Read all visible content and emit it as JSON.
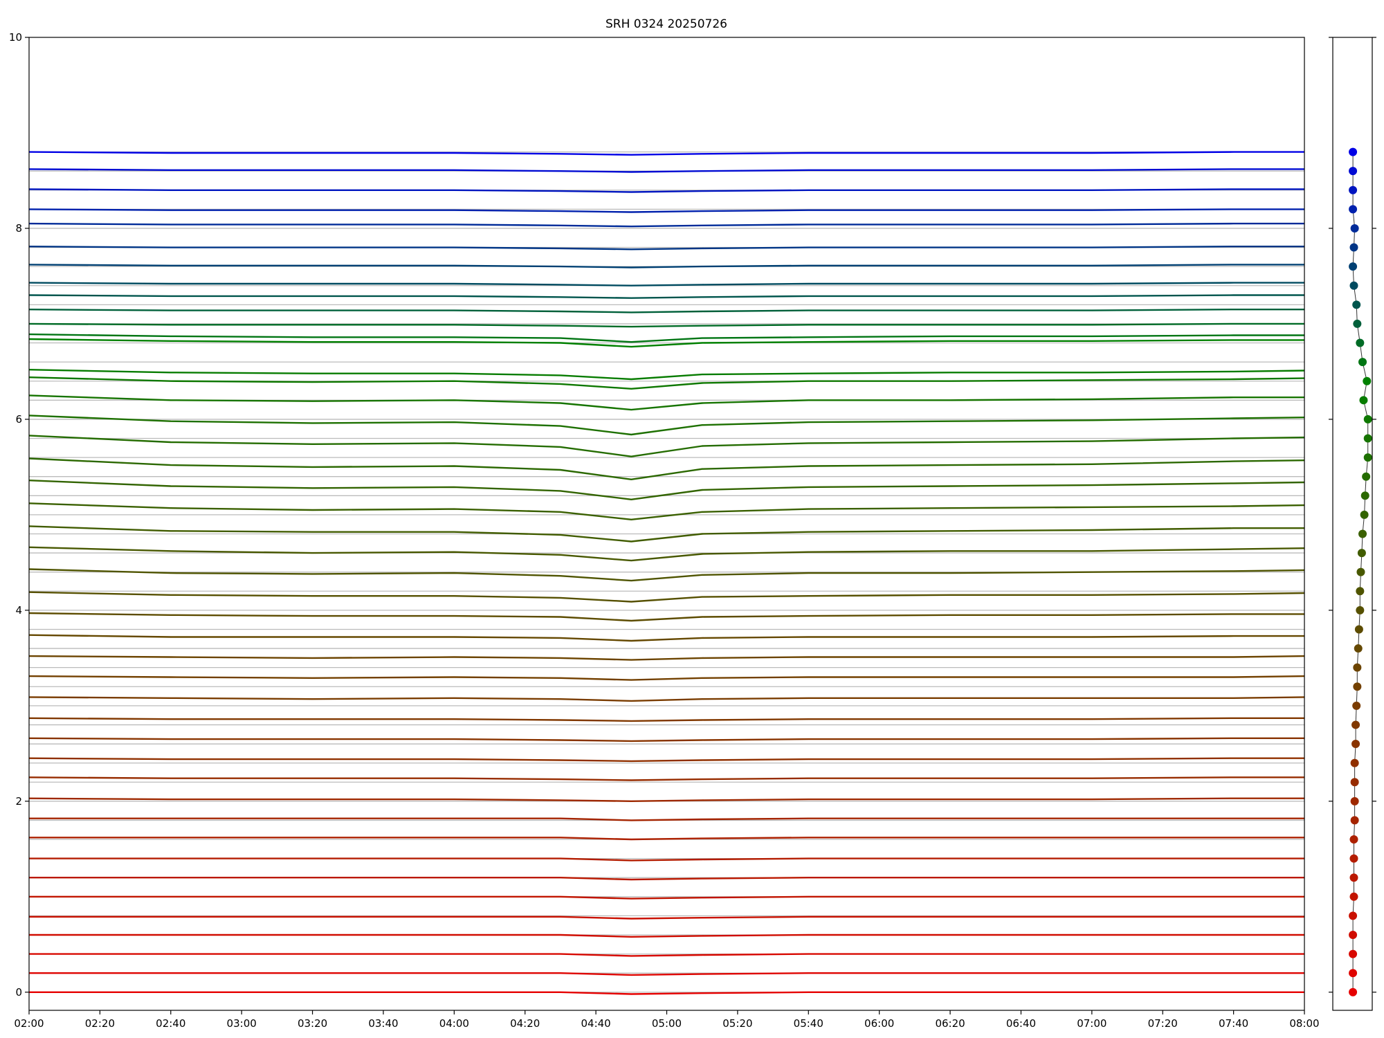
{
  "chart_data": [
    {
      "type": "line",
      "title": "SRH 0324 20250726",
      "x": [
        "02:00",
        "02:40",
        "03:20",
        "04:00",
        "04:30",
        "04:50",
        "05:10",
        "05:40",
        "06:20",
        "07:00",
        "07:40",
        "08:00"
      ],
      "xlim": [
        "02:00",
        "08:00"
      ],
      "xticks": [
        "02:00",
        "02:20",
        "02:40",
        "03:00",
        "03:20",
        "03:40",
        "04:00",
        "04:20",
        "04:40",
        "05:00",
        "05:20",
        "05:40",
        "06:00",
        "06:20",
        "06:40",
        "07:00",
        "07:20",
        "07:40",
        "08:00"
      ],
      "ylim": [
        -0.19,
        10
      ],
      "yticks": [
        0,
        2,
        4,
        6,
        8,
        10
      ],
      "series": [
        {
          "color": "#e60000",
          "values": [
            0,
            0,
            0,
            0,
            0,
            -0.02,
            -0.01,
            0,
            0,
            0,
            0,
            0
          ]
        },
        {
          "color": "#df0400",
          "values": [
            0.2,
            0.2,
            0.2,
            0.2,
            0.2,
            0.18,
            0.19,
            0.2,
            0.2,
            0.2,
            0.2,
            0.2
          ]
        },
        {
          "color": "#d80800",
          "values": [
            0.4,
            0.4,
            0.4,
            0.4,
            0.4,
            0.38,
            0.39,
            0.4,
            0.4,
            0.4,
            0.4,
            0.4
          ]
        },
        {
          "color": "#d00c00",
          "values": [
            0.6,
            0.6,
            0.6,
            0.6,
            0.6,
            0.58,
            0.59,
            0.6,
            0.6,
            0.6,
            0.6,
            0.6
          ]
        },
        {
          "color": "#c91000",
          "values": [
            0.79,
            0.79,
            0.79,
            0.79,
            0.79,
            0.77,
            0.78,
            0.79,
            0.79,
            0.79,
            0.79,
            0.79
          ]
        },
        {
          "color": "#c21400",
          "values": [
            1.0,
            1.0,
            1.0,
            1.0,
            1.0,
            0.98,
            0.99,
            1.0,
            1.0,
            1.0,
            1.0,
            1.0
          ]
        },
        {
          "color": "#bb1800",
          "values": [
            1.2,
            1.2,
            1.2,
            1.2,
            1.2,
            1.18,
            1.19,
            1.2,
            1.2,
            1.2,
            1.2,
            1.2
          ]
        },
        {
          "color": "#b41c00",
          "values": [
            1.4,
            1.4,
            1.4,
            1.4,
            1.4,
            1.38,
            1.39,
            1.4,
            1.4,
            1.4,
            1.4,
            1.4
          ]
        },
        {
          "color": "#ad2000",
          "values": [
            1.62,
            1.62,
            1.62,
            1.62,
            1.62,
            1.6,
            1.61,
            1.62,
            1.62,
            1.62,
            1.62,
            1.62
          ]
        },
        {
          "color": "#a52400",
          "values": [
            1.82,
            1.82,
            1.82,
            1.82,
            1.82,
            1.8,
            1.81,
            1.82,
            1.82,
            1.82,
            1.82,
            1.82
          ]
        },
        {
          "color": "#9e2800",
          "values": [
            2.03,
            2.02,
            2.02,
            2.02,
            2.01,
            2.0,
            2.01,
            2.02,
            2.02,
            2.02,
            2.03,
            2.03
          ]
        },
        {
          "color": "#972c00",
          "values": [
            2.25,
            2.24,
            2.24,
            2.24,
            2.23,
            2.22,
            2.23,
            2.24,
            2.24,
            2.24,
            2.25,
            2.25
          ]
        },
        {
          "color": "#903000",
          "values": [
            2.45,
            2.44,
            2.44,
            2.44,
            2.43,
            2.42,
            2.43,
            2.44,
            2.44,
            2.44,
            2.45,
            2.45
          ]
        },
        {
          "color": "#893400",
          "values": [
            2.66,
            2.65,
            2.65,
            2.65,
            2.64,
            2.63,
            2.64,
            2.65,
            2.65,
            2.65,
            2.66,
            2.66
          ]
        },
        {
          "color": "#813800",
          "values": [
            2.87,
            2.86,
            2.86,
            2.86,
            2.85,
            2.84,
            2.85,
            2.86,
            2.86,
            2.86,
            2.87,
            2.87
          ]
        },
        {
          "color": "#7a3c00",
          "values": [
            3.09,
            3.08,
            3.07,
            3.08,
            3.07,
            3.05,
            3.07,
            3.08,
            3.08,
            3.08,
            3.08,
            3.09
          ]
        },
        {
          "color": "#734000",
          "values": [
            3.31,
            3.3,
            3.29,
            3.3,
            3.29,
            3.27,
            3.29,
            3.3,
            3.3,
            3.3,
            3.3,
            3.31
          ]
        },
        {
          "color": "#6c4400",
          "values": [
            3.52,
            3.51,
            3.5,
            3.51,
            3.5,
            3.48,
            3.5,
            3.51,
            3.51,
            3.51,
            3.51,
            3.52
          ]
        },
        {
          "color": "#654800",
          "values": [
            3.74,
            3.72,
            3.72,
            3.72,
            3.71,
            3.68,
            3.71,
            3.72,
            3.72,
            3.72,
            3.73,
            3.73
          ]
        },
        {
          "color": "#5d4c00",
          "values": [
            3.97,
            3.95,
            3.94,
            3.94,
            3.93,
            3.89,
            3.93,
            3.94,
            3.95,
            3.95,
            3.96,
            3.96
          ]
        },
        {
          "color": "#565000",
          "values": [
            4.19,
            4.16,
            4.15,
            4.15,
            4.13,
            4.09,
            4.14,
            4.15,
            4.16,
            4.16,
            4.17,
            4.18
          ]
        },
        {
          "color": "#4f5400",
          "values": [
            4.43,
            4.39,
            4.38,
            4.39,
            4.36,
            4.31,
            4.37,
            4.39,
            4.39,
            4.4,
            4.41,
            4.42
          ]
        },
        {
          "color": "#485800",
          "values": [
            4.66,
            4.62,
            4.6,
            4.61,
            4.58,
            4.52,
            4.59,
            4.61,
            4.62,
            4.62,
            4.64,
            4.65
          ]
        },
        {
          "color": "#415c00",
          "values": [
            4.88,
            4.83,
            4.82,
            4.82,
            4.79,
            4.72,
            4.8,
            4.82,
            4.83,
            4.84,
            4.86,
            4.86
          ]
        },
        {
          "color": "#3a6000",
          "values": [
            5.12,
            5.07,
            5.05,
            5.06,
            5.03,
            4.95,
            5.03,
            5.06,
            5.07,
            5.08,
            5.09,
            5.1
          ]
        },
        {
          "color": "#326400",
          "values": [
            5.36,
            5.3,
            5.28,
            5.29,
            5.25,
            5.16,
            5.26,
            5.29,
            5.3,
            5.31,
            5.33,
            5.34
          ]
        },
        {
          "color": "#2b6800",
          "values": [
            5.59,
            5.52,
            5.5,
            5.51,
            5.47,
            5.37,
            5.48,
            5.51,
            5.52,
            5.53,
            5.56,
            5.57
          ]
        },
        {
          "color": "#246c00",
          "values": [
            5.83,
            5.76,
            5.74,
            5.75,
            5.71,
            5.61,
            5.72,
            5.75,
            5.76,
            5.77,
            5.8,
            5.81
          ]
        },
        {
          "color": "#1d7000",
          "values": [
            6.04,
            5.98,
            5.96,
            5.97,
            5.93,
            5.84,
            5.94,
            5.97,
            5.98,
            5.99,
            6.01,
            6.02
          ]
        },
        {
          "color": "#167400",
          "values": [
            6.25,
            6.2,
            6.19,
            6.2,
            6.17,
            6.1,
            6.17,
            6.2,
            6.2,
            6.21,
            6.23,
            6.23
          ]
        },
        {
          "color": "#0e7800",
          "values": [
            6.44,
            6.4,
            6.39,
            6.4,
            6.37,
            6.32,
            6.38,
            6.4,
            6.4,
            6.41,
            6.42,
            6.43
          ]
        },
        {
          "color": "#077c00",
          "values": [
            6.52,
            6.49,
            6.48,
            6.48,
            6.46,
            6.42,
            6.47,
            6.48,
            6.49,
            6.49,
            6.5,
            6.51
          ]
        },
        {
          "color": "#008000",
          "values": [
            6.84,
            6.82,
            6.81,
            6.81,
            6.8,
            6.76,
            6.8,
            6.81,
            6.82,
            6.82,
            6.83,
            6.83
          ]
        },
        {
          "color": "#007513",
          "values": [
            6.89,
            6.87,
            6.86,
            6.86,
            6.85,
            6.81,
            6.85,
            6.86,
            6.87,
            6.87,
            6.88,
            6.88
          ]
        },
        {
          "color": "#006b26",
          "values": [
            7.0,
            6.99,
            6.99,
            6.99,
            6.98,
            6.97,
            6.98,
            6.99,
            6.99,
            6.99,
            7.0,
            7.0
          ]
        },
        {
          "color": "#00603a",
          "values": [
            7.15,
            7.14,
            7.14,
            7.14,
            7.13,
            7.12,
            7.13,
            7.14,
            7.14,
            7.14,
            7.15,
            7.15
          ]
        },
        {
          "color": "#00554d",
          "values": [
            7.3,
            7.29,
            7.29,
            7.29,
            7.28,
            7.27,
            7.28,
            7.29,
            7.29,
            7.29,
            7.3,
            7.3
          ]
        },
        {
          "color": "#004b60",
          "values": [
            7.43,
            7.42,
            7.42,
            7.42,
            7.41,
            7.4,
            7.41,
            7.42,
            7.42,
            7.42,
            7.43,
            7.43
          ]
        },
        {
          "color": "#004073",
          "values": [
            7.62,
            7.61,
            7.61,
            7.61,
            7.6,
            7.59,
            7.6,
            7.61,
            7.61,
            7.61,
            7.62,
            7.62
          ]
        },
        {
          "color": "#003586",
          "values": [
            7.81,
            7.8,
            7.8,
            7.8,
            7.79,
            7.78,
            7.79,
            7.8,
            7.8,
            7.8,
            7.81,
            7.81
          ]
        },
        {
          "color": "#002b99",
          "values": [
            8.05,
            8.04,
            8.04,
            8.04,
            8.03,
            8.02,
            8.03,
            8.04,
            8.04,
            8.04,
            8.05,
            8.05
          ]
        },
        {
          "color": "#0020ad",
          "values": [
            8.2,
            8.19,
            8.19,
            8.19,
            8.18,
            8.17,
            8.18,
            8.19,
            8.19,
            8.19,
            8.2,
            8.2
          ]
        },
        {
          "color": "#0015c0",
          "values": [
            8.41,
            8.4,
            8.4,
            8.4,
            8.39,
            8.38,
            8.39,
            8.4,
            8.4,
            8.4,
            8.41,
            8.41
          ]
        },
        {
          "color": "#000bd3",
          "values": [
            8.62,
            8.61,
            8.61,
            8.61,
            8.6,
            8.59,
            8.6,
            8.61,
            8.61,
            8.61,
            8.62,
            8.62
          ]
        },
        {
          "color": "#0000e6",
          "values": [
            8.8,
            8.79,
            8.79,
            8.79,
            8.78,
            8.77,
            8.78,
            8.79,
            8.79,
            8.79,
            8.8,
            8.8
          ]
        }
      ]
    },
    {
      "type": "scatter",
      "xlim": [
        -1,
        1
      ],
      "ylim": [
        -0.19,
        10
      ],
      "line_color": "#333333",
      "reference_lines": true,
      "x": [
        0.02,
        0.02,
        0.02,
        0.02,
        0.02,
        0.07,
        0.07,
        0.07,
        0.07,
        0.11,
        0.11,
        0.11,
        0.11,
        0.16,
        0.16,
        0.2,
        0.24,
        0.24,
        0.29,
        0.33,
        0.38,
        0.38,
        0.42,
        0.47,
        0.51,
        0.6,
        0.64,
        0.69,
        0.78,
        0.78,
        0.78,
        0.56,
        0.73,
        0.51,
        0.38,
        0.24,
        0.2,
        0.07,
        0.02,
        0.07,
        0.11,
        0.02,
        0.02,
        0.02,
        0.02
      ],
      "y": [
        0,
        0.2,
        0.4,
        0.6,
        0.8,
        1.0,
        1.2,
        1.4,
        1.6,
        1.8,
        2.0,
        2.2,
        2.4,
        2.6,
        2.8,
        3.0,
        3.2,
        3.4,
        3.6,
        3.8,
        4.0,
        4.2,
        4.4,
        4.6,
        4.8,
        5.0,
        5.2,
        5.4,
        5.6,
        5.8,
        6.0,
        6.2,
        6.4,
        6.6,
        6.8,
        7.0,
        7.2,
        7.4,
        7.6,
        7.8,
        8.0,
        8.2,
        8.4,
        8.6,
        8.8
      ]
    }
  ]
}
